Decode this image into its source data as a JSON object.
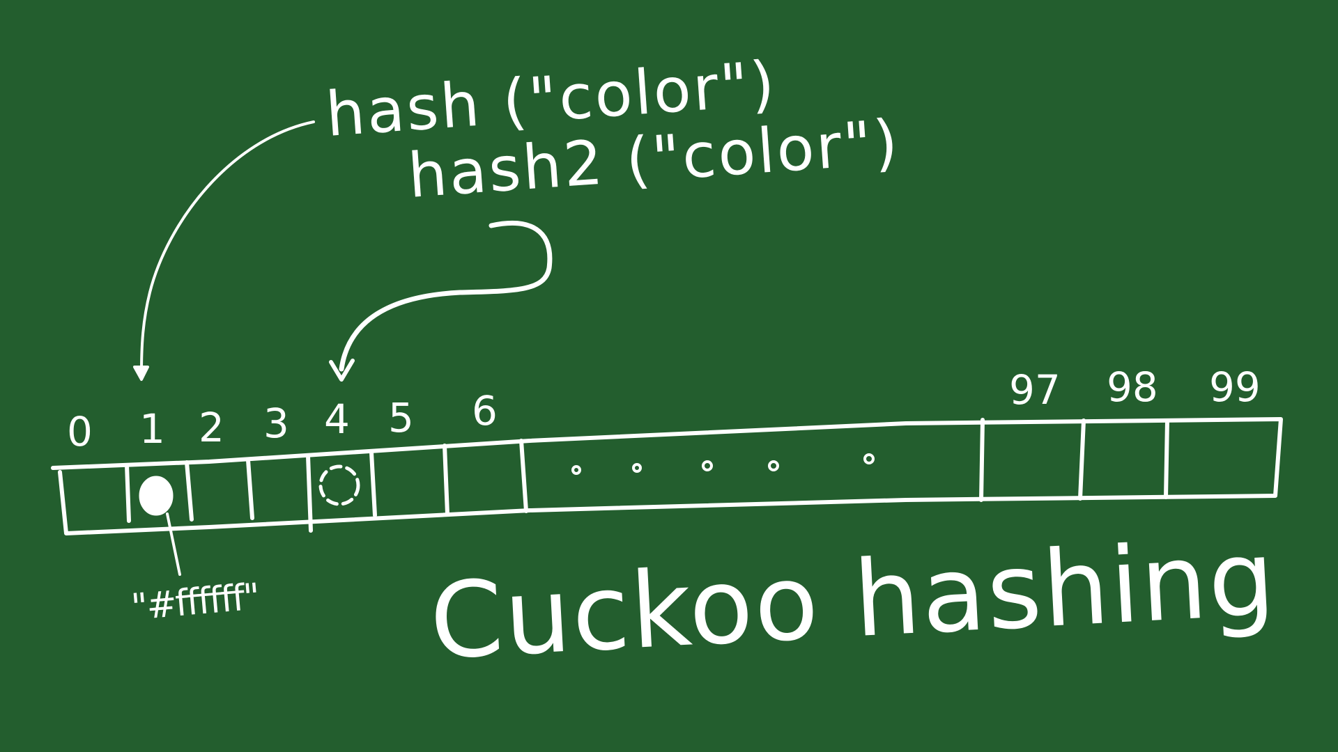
{
  "hash_calls": {
    "first": "hash (\"color\")",
    "second": "hash2 (\"color\")"
  },
  "table": {
    "indices": [
      "0",
      "1",
      "2",
      "3",
      "4",
      "5",
      "6",
      "97",
      "98",
      "99"
    ],
    "occupied_index": "1",
    "alternate_index": "4",
    "stored_value": "\"#ffffff\""
  },
  "title": "Cuckoo hashing",
  "colors": {
    "background": "#235e2e",
    "chalk": "#ffffff"
  }
}
